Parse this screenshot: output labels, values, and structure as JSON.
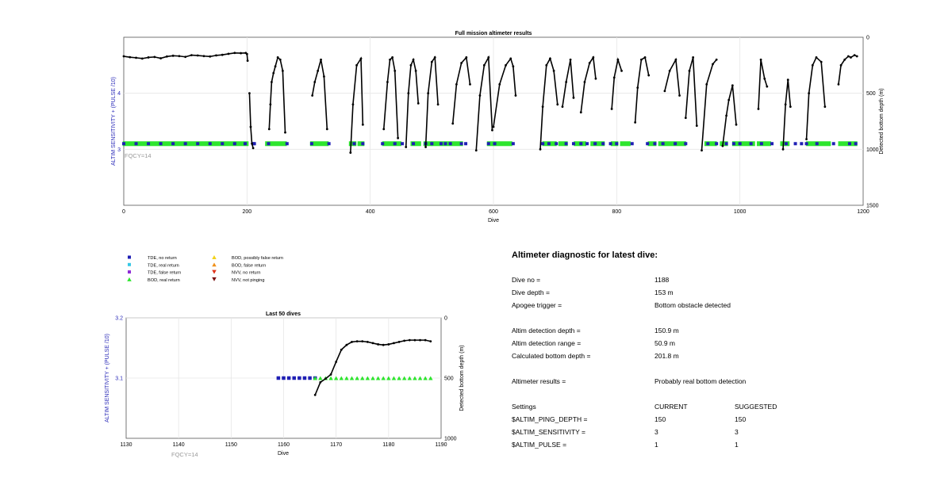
{
  "chart_data": [
    {
      "type": "line",
      "title": "Full mission altimeter results",
      "xlabel": "Dive",
      "ylabel_left": "ALTIM SENSITIVITY + (PULSE /10)",
      "ylabel_right": "Detected bottom depth (m)",
      "xlim": [
        0,
        1200
      ],
      "ylim_left": [
        2,
        5
      ],
      "ylim_right": [
        1500,
        0
      ],
      "x_ticks": [
        "0",
        "200",
        "400",
        "600",
        "800",
        "1000",
        "1200"
      ],
      "y_ticks_left": [
        "3",
        "4"
      ],
      "y_ticks_right": [
        "0",
        "500",
        "1000",
        "1500"
      ],
      "annotation": "FQCY=14",
      "grid": true,
      "series": [
        {
          "name": "TDE, no return",
          "marker": "square",
          "color": "#1f1fb4",
          "note": "sparse markers at sensitivity 3.1 across dives"
        },
        {
          "name": "BOD, real return",
          "marker": "triangle-up",
          "color": "#2ee52e",
          "note": "dense markers at 3.1 in dive ranges"
        }
      ],
      "green_ranges": [
        [
          1,
          200
        ],
        [
          232,
          262
        ],
        [
          305,
          330
        ],
        [
          368,
          375
        ],
        [
          382,
          388
        ],
        [
          422,
          448
        ],
        [
          468,
          480
        ],
        [
          489,
          498
        ],
        [
          502,
          548
        ],
        [
          592,
          628
        ],
        [
          682,
          700
        ],
        [
          708,
          718
        ],
        [
          733,
          748
        ],
        [
          760,
          778
        ],
        [
          793,
          800
        ],
        [
          808,
          820
        ],
        [
          853,
          862
        ],
        [
          870,
          910
        ],
        [
          945,
          960
        ],
        [
          970,
          978
        ],
        [
          990,
          1022
        ],
        [
          1030,
          1048
        ],
        [
          1068,
          1078
        ],
        [
          1110,
          1145
        ],
        [
          1162,
          1188
        ]
      ],
      "blue_dives": [
        0,
        20,
        40,
        60,
        80,
        100,
        120,
        140,
        160,
        180,
        197,
        210,
        212,
        235,
        265,
        305,
        333,
        374,
        388,
        420,
        440,
        452,
        470,
        490,
        500,
        515,
        522,
        530,
        548,
        555,
        592,
        602,
        632,
        680,
        690,
        702,
        718,
        730,
        742,
        752,
        765,
        778,
        790,
        800,
        825,
        850,
        862,
        875,
        895,
        912,
        948,
        962,
        978,
        990,
        1000,
        1018,
        1035,
        1052,
        1075,
        1090,
        1100,
        1108,
        1125,
        1152,
        1178,
        1188
      ],
      "depth_curves": [
        {
          "x": [
            0,
            10,
            20,
            30,
            40,
            50,
            60,
            70,
            80,
            90,
            100,
            110,
            120,
            130,
            140,
            150,
            160,
            170,
            180,
            190,
            198,
            200,
            201
          ],
          "depth": [
            170,
            178,
            183,
            190,
            180,
            176,
            188,
            172,
            165,
            168,
            175,
            160,
            163,
            168,
            172,
            162,
            157,
            148,
            140,
            142,
            140,
            150,
            210
          ]
        },
        {
          "x": [
            204,
            206,
            208,
            210
          ],
          "depth": [
            500,
            800,
            950,
            990
          ]
        },
        {
          "x": [
            236,
            238,
            240,
            243,
            246,
            250,
            254,
            258,
            262
          ],
          "depth": [
            820,
            600,
            400,
            320,
            260,
            180,
            200,
            300,
            850
          ]
        },
        {
          "x": [
            306,
            310,
            315,
            320,
            325,
            330
          ],
          "depth": [
            520,
            400,
            300,
            200,
            350,
            820
          ]
        },
        {
          "x": [
            368,
            372,
            378,
            385,
            388
          ],
          "depth": [
            1030,
            600,
            250,
            190,
            780
          ]
        },
        {
          "x": [
            422,
            428,
            432,
            436,
            440,
            445
          ],
          "depth": [
            820,
            400,
            200,
            180,
            300,
            900
          ]
        },
        {
          "x": [
            458,
            462,
            466,
            470,
            474,
            478
          ],
          "depth": [
            980,
            500,
            250,
            200,
            300,
            590
          ]
        },
        {
          "x": [
            490,
            494,
            500,
            505,
            510
          ],
          "depth": [
            980,
            500,
            220,
            180,
            600
          ]
        },
        {
          "x": [
            534,
            540,
            548,
            556,
            562
          ],
          "depth": [
            770,
            420,
            230,
            180,
            420
          ]
        },
        {
          "x": [
            572,
            578,
            585,
            592,
            598
          ],
          "depth": [
            1010,
            520,
            250,
            180,
            830
          ]
        },
        {
          "x": [
            600,
            610,
            620,
            628,
            632,
            636
          ],
          "depth": [
            800,
            420,
            250,
            190,
            260,
            520
          ]
        },
        {
          "x": [
            676,
            680,
            686,
            692,
            698,
            704
          ],
          "depth": [
            1000,
            620,
            250,
            190,
            300,
            600
          ]
        },
        {
          "x": [
            712,
            718,
            725,
            730
          ],
          "depth": [
            620,
            400,
            200,
            540
          ]
        },
        {
          "x": [
            742,
            748,
            756,
            762,
            766
          ],
          "depth": [
            670,
            400,
            230,
            180,
            370
          ]
        },
        {
          "x": [
            792,
            796,
            802,
            808
          ],
          "depth": [
            640,
            360,
            200,
            300
          ]
        },
        {
          "x": [
            830,
            834,
            840,
            846,
            852
          ],
          "depth": [
            760,
            450,
            200,
            180,
            340
          ]
        },
        {
          "x": [
            878,
            886,
            896,
            902
          ],
          "depth": [
            480,
            300,
            200,
            520
          ]
        },
        {
          "x": [
            912,
            918,
            924,
            930
          ],
          "depth": [
            720,
            300,
            180,
            790
          ]
        },
        {
          "x": [
            938,
            946,
            956,
            962
          ],
          "depth": [
            1010,
            420,
            240,
            200
          ]
        },
        {
          "x": [
            972,
            978,
            982,
            988,
            994
          ],
          "depth": [
            970,
            700,
            560,
            430,
            780
          ]
        },
        {
          "x": [
            1030,
            1034,
            1040,
            1044
          ],
          "depth": [
            640,
            200,
            370,
            440
          ]
        },
        {
          "x": [
            1070,
            1074,
            1078,
            1082
          ],
          "depth": [
            1000,
            600,
            380,
            620
          ]
        },
        {
          "x": [
            1108,
            1112,
            1118,
            1124,
            1132,
            1138
          ],
          "depth": [
            910,
            500,
            250,
            180,
            220,
            620
          ]
        },
        {
          "x": [
            1160,
            1164,
            1170,
            1176,
            1180,
            1186,
            1190
          ],
          "depth": [
            420,
            250,
            200,
            170,
            180,
            160,
            170
          ]
        }
      ]
    },
    {
      "type": "line",
      "title": "Last 50 dives",
      "xlabel": "Dive",
      "ylabel_left": "ALTIM SENSITIVITY + (PULSE /10)",
      "ylabel_right": "Detected bottom depth (m)",
      "xlim": [
        1130,
        1190
      ],
      "ylim_left": [
        3.0,
        3.2
      ],
      "ylim_right": [
        1000,
        0
      ],
      "x_ticks": [
        "1130",
        "1140",
        "1150",
        "1160",
        "1170",
        "1180",
        "1190"
      ],
      "y_ticks_left": [
        "3.1",
        "3.2"
      ],
      "y_ticks_right": [
        "0",
        "500",
        "1000"
      ],
      "annotation": "FQCY=14",
      "grid": true,
      "series": [
        {
          "name": "TDE, no return",
          "marker": "square",
          "color": "#1f1fb4",
          "x": [
            1159,
            1160,
            1161,
            1162,
            1163,
            1164,
            1165,
            1166
          ],
          "y": [
            3.1,
            3.1,
            3.1,
            3.1,
            3.1,
            3.1,
            3.1,
            3.1
          ]
        },
        {
          "name": "BOD, real return",
          "marker": "triangle-up",
          "color": "#2ee52e",
          "x": [
            1166,
            1167,
            1168,
            1169,
            1170,
            1171,
            1172,
            1173,
            1174,
            1175,
            1176,
            1177,
            1178,
            1179,
            1180,
            1181,
            1182,
            1183,
            1184,
            1185,
            1186,
            1187,
            1188
          ],
          "y": [
            3.1,
            3.1,
            3.1,
            3.1,
            3.1,
            3.1,
            3.1,
            3.1,
            3.1,
            3.1,
            3.1,
            3.1,
            3.1,
            3.1,
            3.1,
            3.1,
            3.1,
            3.1,
            3.1,
            3.1,
            3.1,
            3.1,
            3.1
          ]
        },
        {
          "name": "Detected bottom depth",
          "color": "#000000",
          "x": [
            1166,
            1167,
            1168,
            1169,
            1170,
            1171,
            1172,
            1173,
            1174,
            1175,
            1176,
            1177,
            1178,
            1179,
            1180,
            1181,
            1182,
            1183,
            1184,
            1185,
            1186,
            1187,
            1188
          ],
          "depth": [
            640,
            535,
            505,
            470,
            365,
            265,
            225,
            200,
            195,
            195,
            200,
            210,
            220,
            225,
            220,
            210,
            200,
            190,
            185,
            185,
            185,
            185,
            195
          ]
        }
      ]
    }
  ],
  "legend": [
    {
      "label": "TDE, no return",
      "marker": "square",
      "color": "#1f1fb4"
    },
    {
      "label": "TDE, real return",
      "marker": "square",
      "color": "#36c8e6"
    },
    {
      "label": "TDE, false return",
      "marker": "square",
      "color": "#8e2bd6"
    },
    {
      "label": "BOD, real return",
      "marker": "triangle-up",
      "color": "#2ee52e"
    },
    {
      "label": "BOD, possibly false return",
      "marker": "triangle-up",
      "color": "#f2d21b"
    },
    {
      "label": "BOD, false return",
      "marker": "triangle-up",
      "color": "#f0901a"
    },
    {
      "label": "NVV, no return",
      "marker": "triangle-down",
      "color": "#e0331a"
    },
    {
      "label": "NVV, not pinging",
      "marker": "triangle-down",
      "color": "#7a1010"
    }
  ],
  "diagnostic": {
    "title": "Altimeter diagnostic for latest dive:",
    "rows": [
      {
        "label": "Dive no =",
        "value": "1188"
      },
      {
        "label": "Dive depth =",
        "value": "153 m"
      },
      {
        "label": "Apogee trigger =",
        "value": "Bottom obstacle detected"
      },
      {
        "label": "Altim detection depth =",
        "value": "150.9 m"
      },
      {
        "label": "Altim detection range =",
        "value": "50.9 m"
      },
      {
        "label": "Calculated bottom depth =",
        "value": "201.8 m"
      },
      {
        "label": "Altimeter results =",
        "value": "Probably real bottom detection"
      }
    ],
    "settings_header": {
      "label": "Settings",
      "current": "CURRENT",
      "suggested": "SUGGESTED"
    },
    "settings": [
      {
        "label": "$ALTIM_PING_DEPTH =",
        "current": "150",
        "suggested": "150"
      },
      {
        "label": "$ALTIM_SENSITIVITY =",
        "current": "3",
        "suggested": "3"
      },
      {
        "label": "$ALTIM_PULSE =",
        "current": "1",
        "suggested": "1"
      }
    ]
  }
}
